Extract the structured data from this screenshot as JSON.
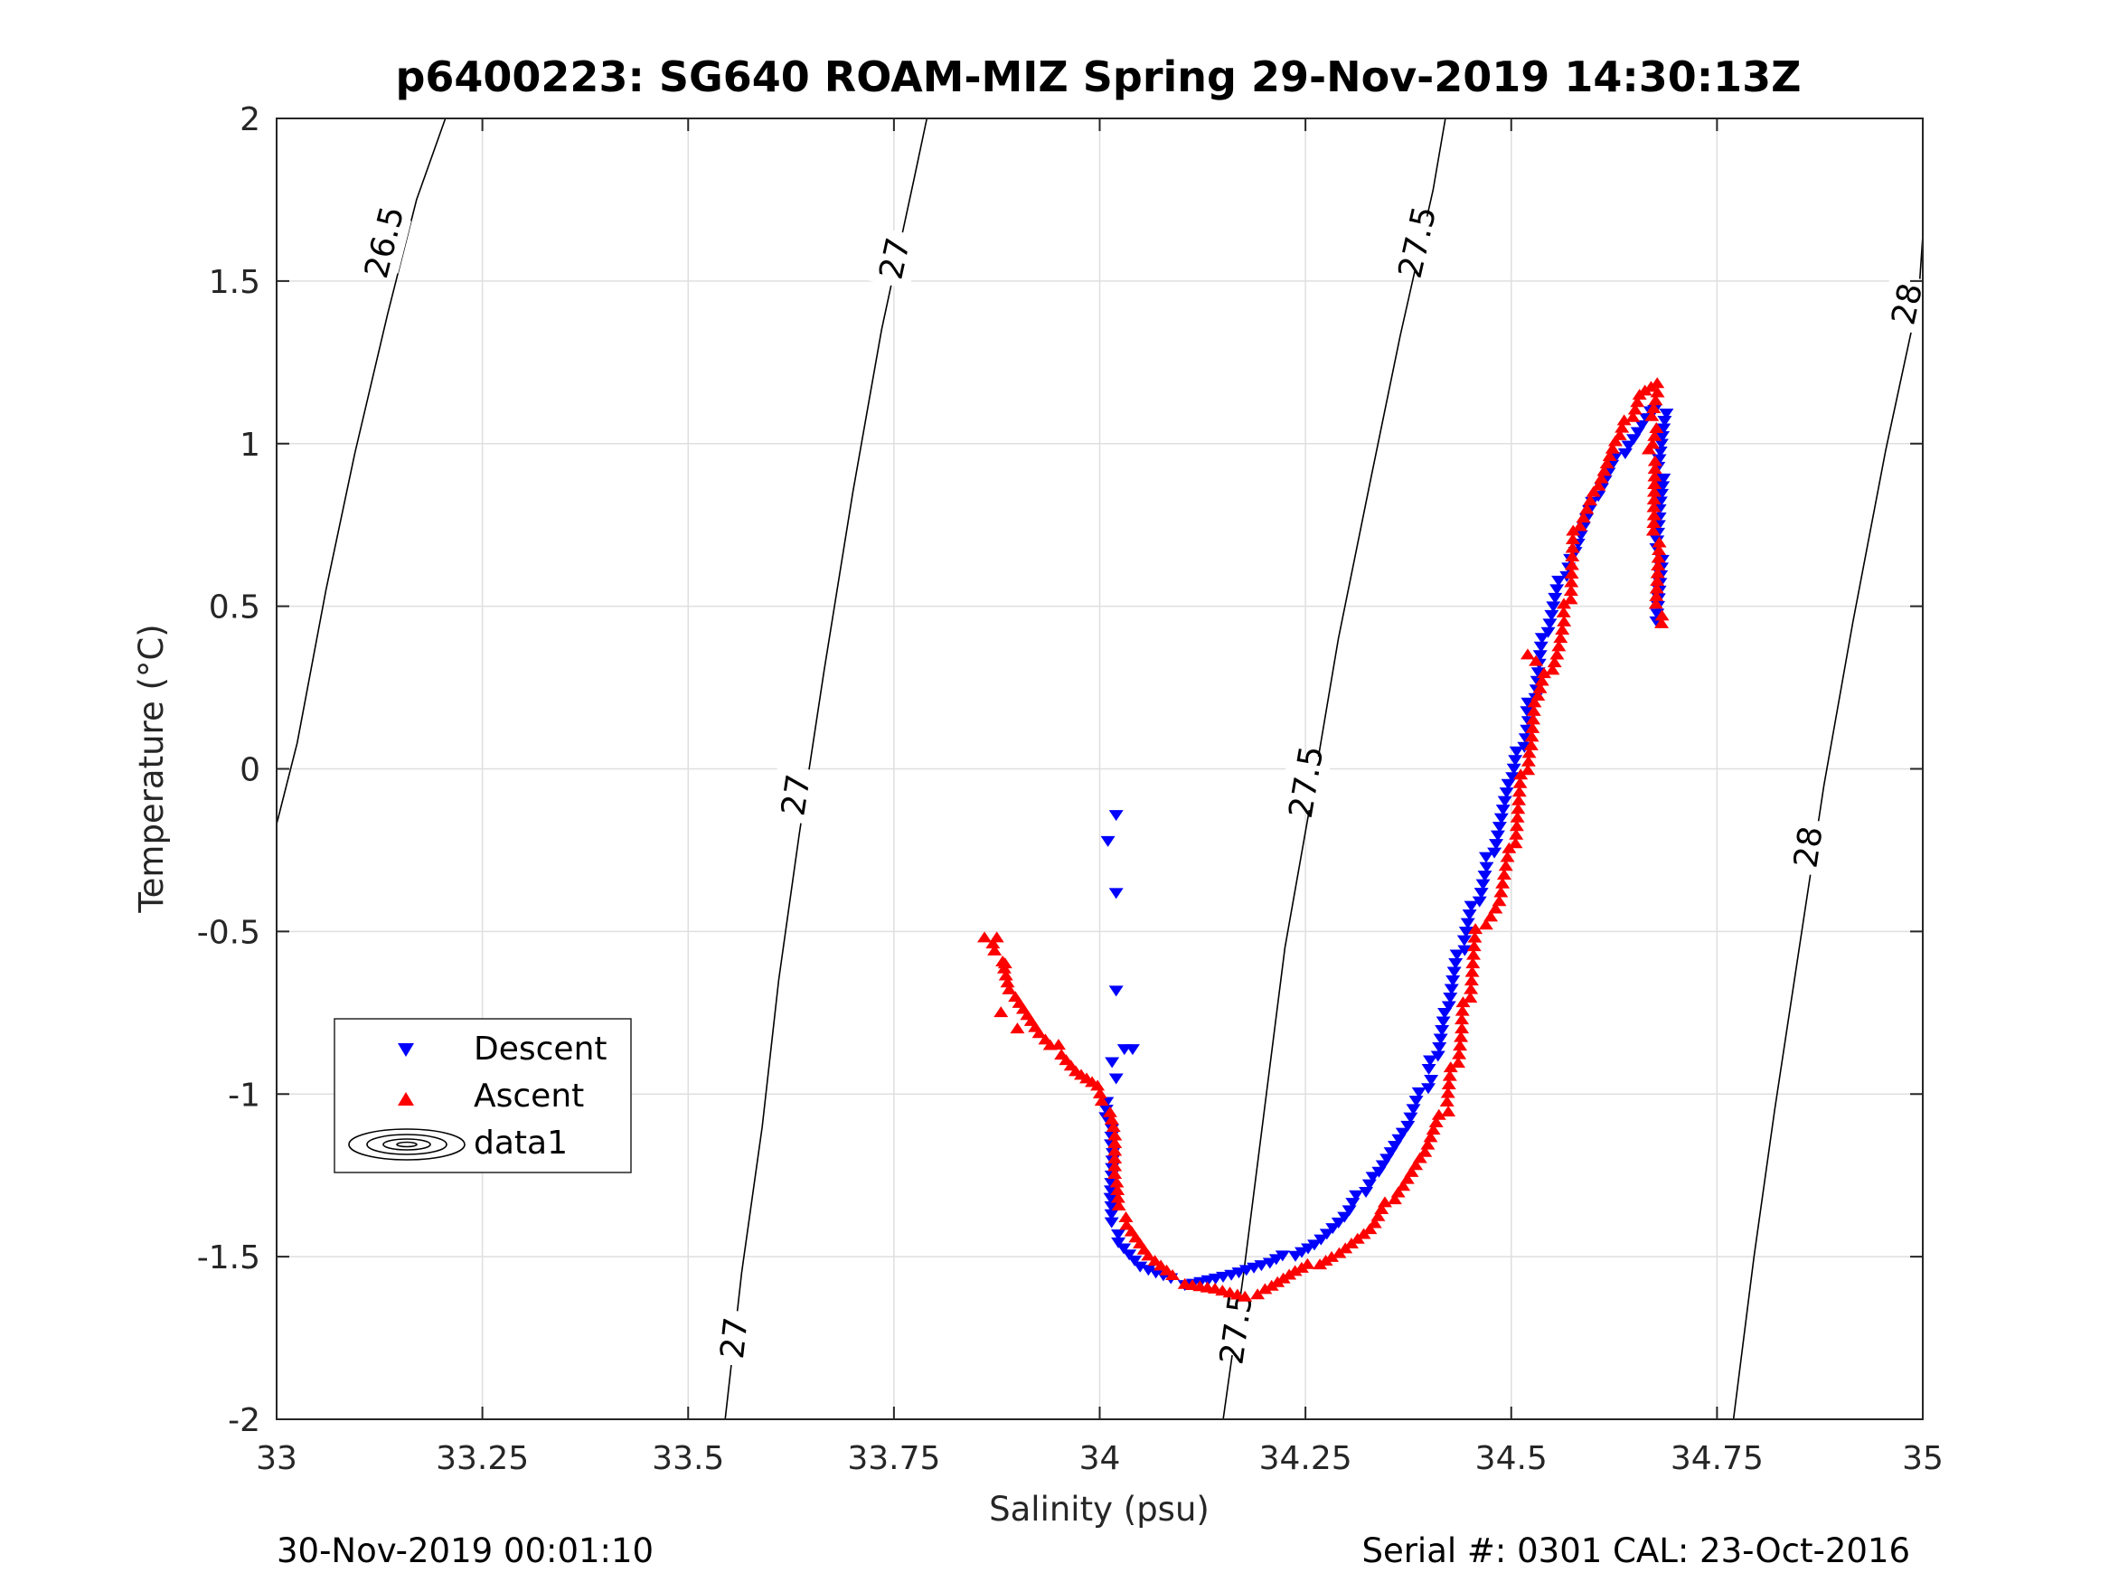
{
  "chart_data": {
    "type": "scatter",
    "title": "p6400223: SG640 ROAM-MIZ Spring 29-Nov-2019 14:30:13Z",
    "xlabel": "Salinity (psu)",
    "ylabel": "Temperature (°C)",
    "xlim": [
      33,
      35
    ],
    "ylim": [
      -2,
      2
    ],
    "xticks": [
      33,
      33.25,
      33.5,
      33.75,
      34,
      34.25,
      34.5,
      34.75,
      35
    ],
    "xtick_labels": [
      "33",
      "33.25",
      "33.5",
      "33.75",
      "34",
      "34.25",
      "34.5",
      "34.75",
      "35"
    ],
    "yticks": [
      -2,
      -1.5,
      -1,
      -0.5,
      0,
      0.5,
      1,
      1.5,
      2
    ],
    "ytick_labels": [
      "-2",
      "-1.5",
      "-1",
      "-0.5",
      "0",
      "0.5",
      "1",
      "1.5",
      "2"
    ],
    "grid": true,
    "legend_position": "lower-left",
    "legend": [
      "Descent",
      "Ascent",
      "data1"
    ],
    "footer_left": "30-Nov-2019 00:01:10",
    "footer_right": "Serial #: 0301  CAL: 23-Oct-2016",
    "contours": [
      {
        "level": "26.5",
        "points": [
          [
            33.0,
            -0.17
          ],
          [
            33.025,
            0.08
          ],
          [
            33.06,
            0.55
          ],
          [
            33.095,
            0.97
          ],
          [
            33.135,
            1.4
          ],
          [
            33.17,
            1.75
          ],
          [
            33.205,
            2.0
          ]
        ],
        "labels": [
          [
            33.13,
            1.62
          ]
        ]
      },
      {
        "level": "27",
        "points": [
          [
            33.545,
            -2.0
          ],
          [
            33.565,
            -1.55
          ],
          [
            33.59,
            -1.1
          ],
          [
            33.61,
            -0.65
          ],
          [
            33.635,
            -0.2
          ],
          [
            33.665,
            0.3
          ],
          [
            33.7,
            0.85
          ],
          [
            33.735,
            1.35
          ],
          [
            33.775,
            1.82
          ],
          [
            33.79,
            2.0
          ]
        ],
        "labels": [
          [
            33.555,
            -1.75
          ],
          [
            33.63,
            -0.08
          ],
          [
            33.75,
            1.57
          ]
        ]
      },
      {
        "level": "27.5",
        "points": [
          [
            34.15,
            -2.0
          ],
          [
            34.175,
            -1.55
          ],
          [
            34.2,
            -1.05
          ],
          [
            34.225,
            -0.55
          ],
          [
            34.26,
            -0.05
          ],
          [
            34.29,
            0.4
          ],
          [
            34.33,
            0.9
          ],
          [
            34.365,
            1.33
          ],
          [
            34.405,
            1.78
          ],
          [
            34.42,
            2.0
          ]
        ],
        "labels": [
          [
            34.165,
            -1.72
          ],
          [
            34.25,
            -0.04
          ],
          [
            34.385,
            1.62
          ]
        ]
      },
      {
        "level": "28",
        "points": [
          [
            34.77,
            -2.0
          ],
          [
            34.795,
            -1.5
          ],
          [
            34.82,
            -1.05
          ],
          [
            34.85,
            -0.55
          ],
          [
            34.88,
            -0.05
          ],
          [
            34.915,
            0.45
          ],
          [
            34.955,
            0.98
          ],
          [
            34.995,
            1.45
          ],
          [
            35.0,
            1.64
          ]
        ],
        "labels": [
          [
            34.86,
            -0.24
          ],
          [
            34.98,
            1.43
          ]
        ]
      }
    ],
    "series": [
      {
        "name": "Descent",
        "marker": "triangle-down",
        "color": "#0000ff",
        "path": [
          [
            34.68,
            0.45
          ],
          [
            34.68,
            0.8
          ],
          [
            34.685,
            1.1
          ],
          [
            34.67,
            1.1
          ],
          [
            34.64,
            1.0
          ],
          [
            34.6,
            0.82
          ],
          [
            34.57,
            0.65
          ],
          [
            34.54,
            0.4
          ],
          [
            34.52,
            0.15
          ],
          [
            34.5,
            -0.05
          ],
          [
            34.47,
            -0.3
          ],
          [
            34.44,
            -0.55
          ],
          [
            34.42,
            -0.75
          ],
          [
            34.4,
            -0.95
          ],
          [
            34.37,
            -1.12
          ],
          [
            34.33,
            -1.25
          ],
          [
            34.3,
            -1.38
          ],
          [
            34.26,
            -1.46
          ],
          [
            34.2,
            -1.53
          ],
          [
            34.15,
            -1.56
          ],
          [
            34.1,
            -1.58
          ],
          [
            34.05,
            -1.53
          ],
          [
            34.02,
            -1.45
          ],
          [
            34.015,
            -1.32
          ],
          [
            34.012,
            -1.15
          ],
          [
            34.01,
            -1.0
          ]
        ],
        "outliers": [
          [
            34.02,
            -0.14
          ],
          [
            34.01,
            -0.22
          ],
          [
            34.02,
            -0.38
          ],
          [
            34.02,
            -0.68
          ],
          [
            34.03,
            -0.86
          ],
          [
            34.04,
            -0.86
          ],
          [
            34.015,
            -0.9
          ],
          [
            34.02,
            -0.95
          ]
        ]
      },
      {
        "name": "Ascent",
        "marker": "triangle-up",
        "color": "#ff0000",
        "path": [
          [
            34.68,
            0.45
          ],
          [
            34.675,
            0.8
          ],
          [
            34.67,
            1.0
          ],
          [
            34.68,
            1.18
          ],
          [
            34.655,
            1.15
          ],
          [
            34.63,
            1.0
          ],
          [
            34.6,
            0.85
          ],
          [
            34.58,
            0.75
          ],
          [
            34.565,
            0.45
          ],
          [
            34.55,
            0.33
          ],
          [
            34.53,
            0.2
          ],
          [
            34.52,
            0.05
          ],
          [
            34.5,
            -0.25
          ],
          [
            34.48,
            -0.43
          ],
          [
            34.46,
            -0.5
          ],
          [
            34.44,
            -0.8
          ],
          [
            34.42,
            -1.05
          ],
          [
            34.39,
            -1.2
          ],
          [
            34.36,
            -1.3
          ],
          [
            34.33,
            -1.42
          ],
          [
            34.28,
            -1.5
          ],
          [
            34.24,
            -1.55
          ],
          [
            34.2,
            -1.6
          ],
          [
            34.18,
            -1.63
          ],
          [
            34.14,
            -1.6
          ],
          [
            34.1,
            -1.58
          ],
          [
            34.06,
            -1.5
          ],
          [
            34.03,
            -1.4
          ],
          [
            34.02,
            -1.25
          ],
          [
            34.015,
            -1.1
          ],
          [
            34.0,
            -0.98
          ],
          [
            33.97,
            -0.93
          ],
          [
            33.93,
            -0.82
          ],
          [
            33.89,
            -0.68
          ],
          [
            33.87,
            -0.52
          ]
        ],
        "outliers": [
          [
            33.86,
            -0.52
          ],
          [
            33.875,
            -0.52
          ],
          [
            33.885,
            -0.6
          ],
          [
            33.88,
            -0.75
          ],
          [
            33.9,
            -0.8
          ],
          [
            33.95,
            -0.85
          ],
          [
            34.52,
            0.35
          ],
          [
            34.53,
            0.33
          ]
        ]
      }
    ]
  }
}
